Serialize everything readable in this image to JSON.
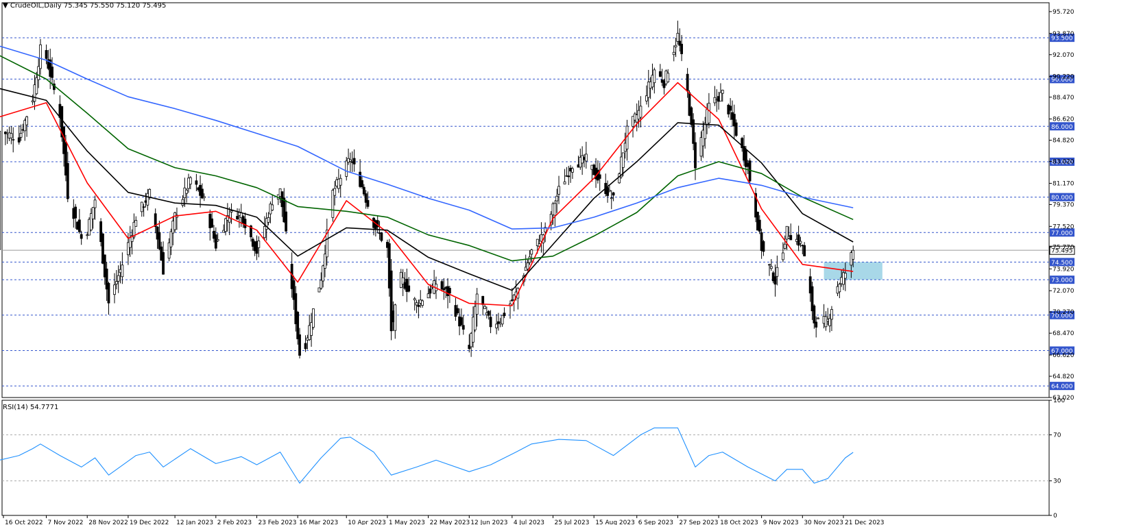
{
  "header": {
    "symbol": "CrudeOIL,Daily",
    "ohlc": "75.345 75.550 75.120 75.495",
    "rsi_title": "RSI(14) 54.7771"
  },
  "colors": {
    "candle": "#000000",
    "ma_fast": "#ff0000",
    "ma_mid": "#000000",
    "ma_slow": "#006400",
    "ma_long": "#3366ff",
    "rsi_line": "#1e90ff",
    "level_line": "#3355cc",
    "zone_fill": "#9ed4e6",
    "price_tag": "#3355cc"
  },
  "chart_data": [
    {
      "type": "candlestick",
      "title": "CrudeOIL,Daily",
      "ylim": [
        63.02,
        96.47
      ],
      "price_axis_ticks": [
        "95.720",
        "93.870",
        "92.070",
        "90.220",
        "88.470",
        "86.620",
        "84.820",
        "83.020",
        "81.170",
        "79.370",
        "77.520",
        "75.770",
        "73.920",
        "72.070",
        "70.270",
        "68.470",
        "66.620",
        "64.820",
        "63.020"
      ],
      "date_labels": [
        "16 Oct 2022",
        "7 Nov 2022",
        "28 Nov 2022",
        "19 Dec 2022",
        "12 Jan 2023",
        "2 Feb 2023",
        "23 Feb 2023",
        "16 Mar 2023",
        "10 Apr 2023",
        "1 May 2023",
        "22 May 2023",
        "12 Jun 2023",
        "4 Jul 2023",
        "25 Jul 2023",
        "15 Aug 2023",
        "6 Sep 2023",
        "27 Sep 2023",
        "18 Oct 2023",
        "9 Nov 2023",
        "30 Nov 2023",
        "21 Dec 2023"
      ],
      "horizontal_levels": [
        {
          "value": 93.5,
          "label": "93.500"
        },
        {
          "value": 90.0,
          "label": "90.000"
        },
        {
          "value": 86.0,
          "label": "86.000"
        },
        {
          "value": 83.0,
          "label": "83.000"
        },
        {
          "value": 80.0,
          "label": "80.000"
        },
        {
          "value": 77.0,
          "label": "77.000"
        },
        {
          "value": 74.5,
          "label": "74.500"
        },
        {
          "value": 73.0,
          "label": "73.000"
        },
        {
          "value": 70.0,
          "label": "70.000"
        },
        {
          "value": 67.0,
          "label": "67.000"
        },
        {
          "value": 64.0,
          "label": "64.000"
        }
      ],
      "last_price": {
        "value": 75.495,
        "label": "75.495"
      },
      "support_zone": {
        "low": 73.0,
        "high": 74.5,
        "from": "11 Dec 2023",
        "to": "10 Jan 2024"
      },
      "price_path": [
        [
          "14 Oct 2022",
          85.6
        ],
        [
          "24 Oct 2022",
          85.0
        ],
        [
          "31 Oct 2022",
          88.4
        ],
        [
          "4 Nov 2022",
          92.5
        ],
        [
          "7 Nov 2022",
          91.8
        ],
        [
          "14 Nov 2022",
          87.0
        ],
        [
          "18 Nov 2022",
          80.2
        ],
        [
          "25 Nov 2022",
          76.5
        ],
        [
          "28 Nov 2022",
          77.2
        ],
        [
          "2 Dec 2022",
          79.8
        ],
        [
          "9 Dec 2022",
          71.0
        ],
        [
          "16 Dec 2022",
          74.3
        ],
        [
          "23 Dec 2022",
          78.3
        ],
        [
          "30 Dec 2022",
          80.3
        ],
        [
          "6 Jan 2023",
          73.8
        ],
        [
          "12 Jan 2023",
          78.4
        ],
        [
          "20 Jan 2023",
          81.6
        ],
        [
          "27 Jan 2023",
          79.7
        ],
        [
          "2 Feb 2023",
          75.9
        ],
        [
          "8 Feb 2023",
          78.5
        ],
        [
          "15 Feb 2023",
          78.6
        ],
        [
          "23 Feb 2023",
          75.4
        ],
        [
          "3 Mar 2023",
          79.7
        ],
        [
          "7 Mar 2023",
          80.5
        ],
        [
          "10 Mar 2023",
          76.7
        ],
        [
          "17 Mar 2023",
          66.7
        ],
        [
          "20 Mar 2023",
          67.6
        ],
        [
          "28 Mar 2023",
          73.2
        ],
        [
          "3 Apr 2023",
          80.4
        ],
        [
          "12 Apr 2023",
          83.3
        ],
        [
          "18 Apr 2023",
          80.9
        ],
        [
          "24 Apr 2023",
          77.8
        ],
        [
          "1 May 2023",
          75.6
        ],
        [
          "3 May 2023",
          68.6
        ],
        [
          "8 May 2023",
          73.2
        ],
        [
          "16 May 2023",
          70.9
        ],
        [
          "22 May 2023",
          71.9
        ],
        [
          "26 May 2023",
          72.7
        ],
        [
          "2 Jun 2023",
          71.7
        ],
        [
          "12 Jun 2023",
          67.1
        ],
        [
          "16 Jun 2023",
          71.8
        ],
        [
          "23 Jun 2023",
          69.2
        ],
        [
          "28 Jun 2023",
          69.6
        ],
        [
          "6 Jul 2023",
          71.8
        ],
        [
          "14 Jul 2023",
          75.4
        ],
        [
          "21 Jul 2023",
          77.1
        ],
        [
          "28 Jul 2023",
          80.6
        ],
        [
          "4 Aug 2023",
          82.8
        ],
        [
          "11 Aug 2023",
          83.2
        ],
        [
          "18 Aug 2023",
          81.3
        ],
        [
          "25 Aug 2023",
          79.8
        ],
        [
          "1 Sep 2023",
          85.6
        ],
        [
          "8 Sep 2023",
          87.5
        ],
        [
          "15 Sep 2023",
          90.8
        ],
        [
          "20 Sep 2023",
          89.7
        ],
        [
          "27 Sep 2023",
          93.7
        ],
        [
          "2 Oct 2023",
          88.8
        ],
        [
          "6 Oct 2023",
          82.8
        ],
        [
          "13 Oct 2023",
          87.7
        ],
        [
          "20 Oct 2023",
          88.8
        ],
        [
          "27 Oct 2023",
          85.5
        ],
        [
          "2 Nov 2023",
          82.5
        ],
        [
          "9 Nov 2023",
          75.7
        ],
        [
          "16 Nov 2023",
          72.9
        ],
        [
          "22 Nov 2023",
          77.1
        ],
        [
          "30 Nov 2023",
          75.9
        ],
        [
          "6 Dec 2023",
          69.4
        ],
        [
          "13 Dec 2023",
          69.5
        ],
        [
          "18 Dec 2023",
          72.5
        ],
        [
          "22 Dec 2023",
          73.6
        ],
        [
          "26 Dec 2023",
          75.5
        ]
      ],
      "series": [
        {
          "name": "MA fast",
          "color": "#ff0000",
          "points": [
            [
              "14 Oct 2022",
              86.8
            ],
            [
              "7 Nov 2022",
              88.0
            ],
            [
              "28 Nov 2022",
              81.2
            ],
            [
              "19 Dec 2022",
              76.5
            ],
            [
              "12 Jan 2023",
              78.4
            ],
            [
              "2 Feb 2023",
              78.8
            ],
            [
              "23 Feb 2023",
              77.2
            ],
            [
              "16 Mar 2023",
              72.8
            ],
            [
              "10 Apr 2023",
              79.7
            ],
            [
              "1 May 2023",
              77.0
            ],
            [
              "22 May 2023",
              72.6
            ],
            [
              "12 Jun 2023",
              71.0
            ],
            [
              "4 Jul 2023",
              70.8
            ],
            [
              "25 Jul 2023",
              78.2
            ],
            [
              "15 Aug 2023",
              81.6
            ],
            [
              "6 Sep 2023",
              86.2
            ],
            [
              "27 Sep 2023",
              89.7
            ],
            [
              "18 Oct 2023",
              86.6
            ],
            [
              "9 Nov 2023",
              79.0
            ],
            [
              "30 Nov 2023",
              74.3
            ],
            [
              "26 Dec 2023",
              73.7
            ]
          ]
        },
        {
          "name": "MA mid",
          "color": "#000000",
          "points": [
            [
              "14 Oct 2022",
              89.2
            ],
            [
              "7 Nov 2022",
              88.2
            ],
            [
              "28 Nov 2022",
              83.9
            ],
            [
              "19 Dec 2022",
              80.4
            ],
            [
              "12 Jan 2023",
              79.5
            ],
            [
              "2 Feb 2023",
              79.3
            ],
            [
              "23 Feb 2023",
              78.3
            ],
            [
              "16 Mar 2023",
              75.0
            ],
            [
              "10 Apr 2023",
              77.4
            ],
            [
              "1 May 2023",
              77.2
            ],
            [
              "22 May 2023",
              74.9
            ],
            [
              "12 Jun 2023",
              73.5
            ],
            [
              "4 Jul 2023",
              72.1
            ],
            [
              "25 Jul 2023",
              76.0
            ],
            [
              "15 Aug 2023",
              79.9
            ],
            [
              "6 Sep 2023",
              83.0
            ],
            [
              "27 Sep 2023",
              86.3
            ],
            [
              "18 Oct 2023",
              86.1
            ],
            [
              "9 Nov 2023",
              82.9
            ],
            [
              "30 Nov 2023",
              78.6
            ],
            [
              "26 Dec 2023",
              76.2
            ]
          ]
        },
        {
          "name": "MA slow",
          "color": "#006400",
          "points": [
            [
              "14 Oct 2022",
              92.0
            ],
            [
              "7 Nov 2022",
              90.0
            ],
            [
              "28 Nov 2022",
              87.1
            ],
            [
              "19 Dec 2022",
              84.1
            ],
            [
              "12 Jan 2023",
              82.5
            ],
            [
              "2 Feb 2023",
              81.8
            ],
            [
              "23 Feb 2023",
              80.8
            ],
            [
              "16 Mar 2023",
              79.2
            ],
            [
              "10 Apr 2023",
              78.8
            ],
            [
              "1 May 2023",
              78.3
            ],
            [
              "22 May 2023",
              76.8
            ],
            [
              "12 Jun 2023",
              75.9
            ],
            [
              "4 Jul 2023",
              74.6
            ],
            [
              "25 Jul 2023",
              75.0
            ],
            [
              "15 Aug 2023",
              76.7
            ],
            [
              "6 Sep 2023",
              78.7
            ],
            [
              "27 Sep 2023",
              81.8
            ],
            [
              "18 Oct 2023",
              83.0
            ],
            [
              "9 Nov 2023",
              82.0
            ],
            [
              "30 Nov 2023",
              80.0
            ],
            [
              "26 Dec 2023",
              78.1
            ]
          ]
        },
        {
          "name": "MA long",
          "color": "#3366ff",
          "points": [
            [
              "14 Oct 2022",
              92.8
            ],
            [
              "7 Nov 2022",
              91.6
            ],
            [
              "28 Nov 2022",
              90.0
            ],
            [
              "19 Dec 2022",
              88.5
            ],
            [
              "12 Jan 2023",
              87.5
            ],
            [
              "2 Feb 2023",
              86.5
            ],
            [
              "23 Feb 2023",
              85.4
            ],
            [
              "16 Mar 2023",
              84.3
            ],
            [
              "10 Apr 2023",
              82.2
            ],
            [
              "1 May 2023",
              81.1
            ],
            [
              "22 May 2023",
              79.9
            ],
            [
              "12 Jun 2023",
              78.9
            ],
            [
              "4 Jul 2023",
              77.3
            ],
            [
              "25 Jul 2023",
              77.4
            ],
            [
              "15 Aug 2023",
              78.3
            ],
            [
              "6 Sep 2023",
              79.5
            ],
            [
              "27 Sep 2023",
              80.8
            ],
            [
              "18 Oct 2023",
              81.6
            ],
            [
              "9 Nov 2023",
              81.0
            ],
            [
              "30 Nov 2023",
              80.0
            ],
            [
              "26 Dec 2023",
              79.1
            ]
          ]
        }
      ]
    },
    {
      "type": "line",
      "title": "RSI(14) 54.7771",
      "ylim": [
        0,
        100
      ],
      "axis_ticks": [
        "100",
        "70",
        "30",
        "0"
      ],
      "reference_levels": [
        30,
        70
      ],
      "series": [
        {
          "name": "RSI(14)",
          "color": "#1e90ff",
          "points": [
            [
              "14 Oct 2022",
              48
            ],
            [
              "24 Oct 2022",
              52
            ],
            [
              "31 Oct 2022",
              58
            ],
            [
              "4 Nov 2022",
              62
            ],
            [
              "14 Nov 2022",
              52
            ],
            [
              "25 Nov 2022",
              42
            ],
            [
              "2 Dec 2022",
              50
            ],
            [
              "9 Dec 2022",
              35
            ],
            [
              "23 Dec 2022",
              52
            ],
            [
              "30 Dec 2022",
              55
            ],
            [
              "6 Jan 2023",
              42
            ],
            [
              "20 Jan 2023",
              58
            ],
            [
              "2 Feb 2023",
              45
            ],
            [
              "15 Feb 2023",
              51
            ],
            [
              "23 Feb 2023",
              44
            ],
            [
              "7 Mar 2023",
              55
            ],
            [
              "17 Mar 2023",
              28
            ],
            [
              "28 Mar 2023",
              50
            ],
            [
              "7 Apr 2023",
              67
            ],
            [
              "12 Apr 2023",
              68
            ],
            [
              "24 Apr 2023",
              55
            ],
            [
              "3 May 2023",
              35
            ],
            [
              "16 May 2023",
              42
            ],
            [
              "26 May 2023",
              48
            ],
            [
              "12 Jun 2023",
              38
            ],
            [
              "23 Jun 2023",
              44
            ],
            [
              "6 Jul 2023",
              55
            ],
            [
              "14 Jul 2023",
              62
            ],
            [
              "28 Jul 2023",
              66
            ],
            [
              "11 Aug 2023",
              65
            ],
            [
              "25 Aug 2023",
              52
            ],
            [
              "8 Sep 2023",
              70
            ],
            [
              "15 Sep 2023",
              76
            ],
            [
              "27 Sep 2023",
              76
            ],
            [
              "6 Oct 2023",
              42
            ],
            [
              "13 Oct 2023",
              52
            ],
            [
              "20 Oct 2023",
              55
            ],
            [
              "2 Nov 2023",
              42
            ],
            [
              "16 Nov 2023",
              30
            ],
            [
              "22 Nov 2023",
              40
            ],
            [
              "30 Nov 2023",
              40
            ],
            [
              "6 Dec 2023",
              28
            ],
            [
              "13 Dec 2023",
              32
            ],
            [
              "22 Dec 2023",
              50
            ],
            [
              "26 Dec 2023",
              54.78
            ]
          ]
        }
      ]
    }
  ]
}
